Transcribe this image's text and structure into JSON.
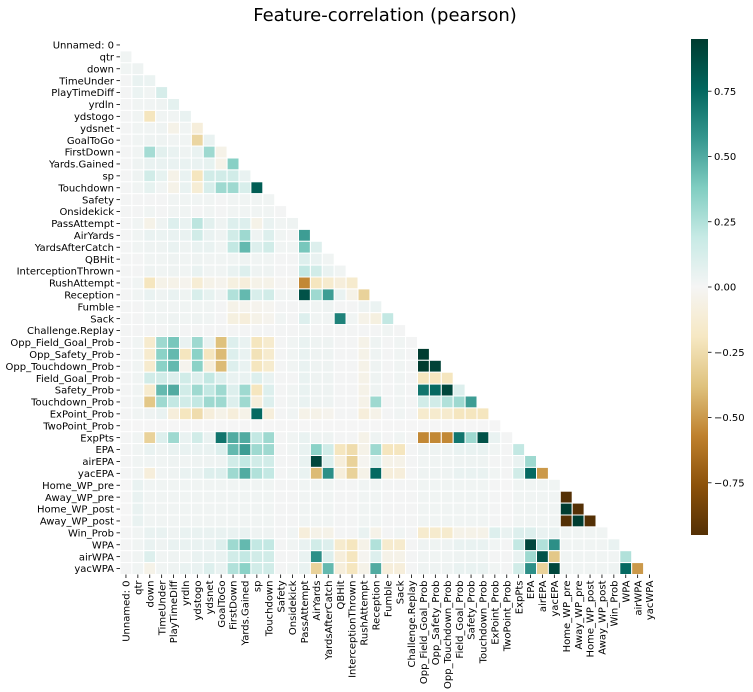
{
  "chart_data": {
    "type": "heatmap",
    "title": "Feature-correlation (pearson)",
    "mask": "upper-triangle",
    "labels": [
      "Unnamed: 0",
      "qtr",
      "down",
      "TimeUnder",
      "PlayTimeDiff",
      "yrdln",
      "ydstogo",
      "ydsnet",
      "GoalToGo",
      "FirstDown",
      "Yards.Gained",
      "sp",
      "Touchdown",
      "Safety",
      "Onsidekick",
      "PassAttempt",
      "AirYards",
      "YardsAfterCatch",
      "QBHit",
      "InterceptionThrown",
      "RushAttempt",
      "Reception",
      "Fumble",
      "Sack",
      "Challenge.Replay",
      "Opp_Field_Goal_Prob",
      "Opp_Safety_Prob",
      "Opp_Touchdown_Prob",
      "Field_Goal_Prob",
      "Safety_Prob",
      "Touchdown_Prob",
      "ExPoint_Prob",
      "TwoPoint_Prob",
      "ExpPts",
      "EPA",
      "airEPA",
      "yacEPA",
      "Home_WP_pre",
      "Away_WP_pre",
      "Home_WP_post",
      "Away_WP_post",
      "Win_Prob",
      "WPA",
      "airWPA",
      "yacWPA"
    ],
    "colorbar": {
      "ticks": [
        0.75,
        0.5,
        0.25,
        0.0,
        -0.25,
        -0.5,
        -0.75
      ],
      "tick_labels": [
        "0.75",
        "0.50",
        "0.25",
        "0.00",
        "−0.25",
        "−0.50",
        "−0.75"
      ],
      "range": [
        -0.95,
        0.95
      ],
      "colormap": "BrBG",
      "color_stops": [
        "#543005",
        "#8c510a",
        "#bf812d",
        "#dfc27d",
        "#f6e8c3",
        "#f5f5f5",
        "#c7eae5",
        "#80cdc1",
        "#35978f",
        "#01665e",
        "#003c30"
      ]
    },
    "values": [
      [
        0
      ],
      [
        0.02,
        0
      ],
      [
        0.02,
        0.03,
        0
      ],
      [
        0.01,
        0.05,
        0.04,
        0
      ],
      [
        0.01,
        0.04,
        0.02,
        0.13,
        0
      ],
      [
        0.01,
        0.02,
        0.02,
        0.03,
        0.07,
        0
      ],
      [
        0.01,
        0.02,
        -0.2,
        0.02,
        0.02,
        0.05,
        0
      ],
      [
        0.01,
        0.02,
        0.02,
        0.03,
        -0.05,
        0.02,
        -0.1,
        0
      ],
      [
        0.01,
        0.02,
        0.03,
        0.03,
        0.02,
        0.02,
        -0.28,
        0.05,
        0
      ],
      [
        0.01,
        0.02,
        0.28,
        0.08,
        0.05,
        0.03,
        0.05,
        0.3,
        -0.05,
        0
      ],
      [
        0.01,
        0.03,
        0.05,
        0.05,
        0.05,
        0.05,
        0.05,
        0.06,
        -0.05,
        0.36,
        0
      ],
      [
        0.01,
        0.03,
        0.15,
        0.06,
        -0.05,
        0.05,
        -0.2,
        0.15,
        0.15,
        0.15,
        0.05,
        0
      ],
      [
        0.01,
        0.02,
        0.06,
        0.02,
        -0.05,
        0.05,
        -0.12,
        0.12,
        0.3,
        0.3,
        0.12,
        0.8,
        0
      ],
      [
        0.01,
        0.01,
        0.01,
        0.01,
        0.02,
        0.02,
        0.02,
        0.02,
        0.01,
        0.02,
        0.02,
        0.02,
        0.02,
        0
      ],
      [
        0.01,
        0.01,
        0.02,
        0.01,
        0.02,
        0.02,
        0.01,
        0.02,
        0.01,
        0.02,
        0.02,
        0.02,
        0.02,
        0.01,
        0
      ],
      [
        0.01,
        0.02,
        -0.05,
        0.03,
        0.1,
        0.05,
        0.22,
        0.08,
        0.03,
        0.1,
        0.1,
        -0.05,
        0.05,
        0.02,
        0.03,
        0
      ],
      [
        0.01,
        0.02,
        0.05,
        0.04,
        0.05,
        0.05,
        0.15,
        0.05,
        0.03,
        0.15,
        0.3,
        0.03,
        0.1,
        0.02,
        0.01,
        0.55,
        0
      ],
      [
        0.01,
        0.02,
        0.03,
        0.03,
        0.05,
        0.03,
        0.05,
        0.05,
        0.02,
        0.2,
        0.45,
        0.1,
        0.15,
        0.02,
        0.02,
        0.4,
        0.1,
        0
      ],
      [
        0.01,
        0.01,
        0.02,
        0.02,
        0.03,
        0.02,
        0.03,
        0.02,
        0.02,
        0.02,
        0.03,
        0.02,
        0.02,
        0.01,
        0.01,
        0.1,
        0.05,
        0.02,
        0
      ],
      [
        0.01,
        0.01,
        0.03,
        0.02,
        0.03,
        0.02,
        0.05,
        0.02,
        0.02,
        0.05,
        0.1,
        0.03,
        0.03,
        0.01,
        0.01,
        0.2,
        0.15,
        0.05,
        0.02,
        0
      ],
      [
        0.01,
        0.02,
        -0.2,
        -0.05,
        -0.05,
        -0.03,
        -0.12,
        -0.05,
        -0.03,
        -0.08,
        -0.1,
        -0.05,
        -0.05,
        -0.01,
        -0.02,
        -0.55,
        -0.2,
        -0.15,
        -0.1,
        -0.15,
        0
      ],
      [
        0.01,
        0.02,
        0.05,
        0.03,
        0.05,
        0.03,
        0.12,
        0.06,
        0.03,
        0.25,
        0.45,
        0.12,
        0.15,
        0.02,
        0.02,
        0.85,
        0.3,
        0.55,
        0.05,
        -0.05,
        -0.3,
        0
      ],
      [
        0.01,
        0.01,
        0.02,
        0.02,
        0.02,
        0.02,
        0.02,
        0.02,
        0.01,
        -0.05,
        -0.03,
        -0.03,
        -0.02,
        0.01,
        0.01,
        0.02,
        0.02,
        0.03,
        0.01,
        0.01,
        0.03,
        0.04,
        0
      ],
      [
        0.01,
        0.01,
        0.02,
        0.02,
        0.03,
        0.02,
        0.03,
        0.02,
        0.01,
        -0.08,
        -0.1,
        -0.05,
        -0.03,
        0.02,
        0.01,
        0.1,
        0.02,
        0.02,
        0.65,
        0.02,
        -0.05,
        -0.08,
        0.2,
        0
      ],
      [
        0.01,
        0.01,
        0.01,
        0.01,
        0.02,
        0.01,
        0.01,
        0.01,
        0.01,
        0.01,
        0.01,
        0.01,
        0.01,
        0.01,
        0.01,
        0.02,
        0.01,
        0.01,
        0.01,
        0.01,
        0.01,
        0.01,
        0.02,
        0.01,
        0
      ],
      [
        0.01,
        0.02,
        -0.15,
        0.3,
        0.4,
        0.05,
        0.3,
        0.05,
        -0.38,
        0.1,
        0.05,
        -0.2,
        -0.15,
        0.01,
        0.02,
        0.05,
        0.03,
        0.03,
        0.01,
        0.01,
        -0.05,
        0.03,
        0.01,
        0.02,
        0.01,
        0
      ],
      [
        0.01,
        0.02,
        -0.15,
        0.35,
        0.45,
        -0.2,
        0.35,
        -0.2,
        -0.4,
        0.1,
        0.05,
        -0.22,
        -0.15,
        0.01,
        0.02,
        0.05,
        0.03,
        0.03,
        0.01,
        0.01,
        -0.05,
        0.03,
        0.01,
        0.02,
        0.01,
        0.95,
        0
      ],
      [
        0.01,
        0.02,
        -0.15,
        0.35,
        0.45,
        -0.03,
        0.35,
        -0.1,
        -0.4,
        0.1,
        0.05,
        -0.2,
        -0.15,
        0.01,
        0.02,
        0.05,
        0.03,
        0.03,
        0.01,
        0.01,
        -0.05,
        0.03,
        0.01,
        0.02,
        0.01,
        0.95,
        0.92,
        0
      ],
      [
        0.01,
        0.02,
        0.15,
        0.15,
        0.1,
        0.15,
        0.1,
        0.2,
        0.1,
        0.05,
        0.05,
        0.1,
        0.05,
        0.01,
        0.01,
        0.05,
        0.03,
        0.03,
        0.01,
        0.01,
        -0.05,
        0.03,
        0.01,
        0.02,
        0.01,
        -0.2,
        -0.2,
        -0.2,
        0
      ],
      [
        0.01,
        0.02,
        -0.15,
        0.45,
        0.5,
        0.15,
        0.3,
        0.2,
        0.3,
        0.1,
        0.3,
        -0.2,
        0.1,
        0.01,
        0.02,
        0.05,
        0.03,
        0.03,
        0.01,
        0.01,
        -0.05,
        0.03,
        0.01,
        0.02,
        0.01,
        0.7,
        0.75,
        0.9,
        0.1,
        0
      ],
      [
        0.01,
        0.02,
        -0.35,
        0.3,
        0.2,
        0.15,
        0.2,
        0.3,
        0.3,
        0.1,
        0.3,
        -0.1,
        0.1,
        0.01,
        0.02,
        0.05,
        0.03,
        0.03,
        0.01,
        0.01,
        -0.05,
        0.3,
        0.01,
        0.02,
        0.01,
        0.15,
        0.15,
        0.25,
        0.3,
        0.55,
        0
      ],
      [
        0.01,
        0.02,
        0.03,
        0.05,
        -0.1,
        -0.2,
        -0.25,
        -0.1,
        -0.05,
        -0.1,
        -0.05,
        0.75,
        -0.1,
        0.01,
        0.02,
        -0.05,
        -0.05,
        -0.03,
        0.01,
        0.01,
        -0.1,
        -0.05,
        0.01,
        0.02,
        0.01,
        -0.15,
        -0.15,
        -0.15,
        -0.2,
        -0.2,
        -0.2,
        0
      ],
      [
        0,
        0,
        0,
        0,
        0,
        0,
        0,
        0,
        0,
        0,
        0,
        0,
        0,
        0,
        0,
        0,
        0,
        0,
        0,
        0,
        0,
        0,
        0,
        0,
        0,
        0,
        0,
        0,
        0,
        0,
        0,
        0,
        0
      ],
      [
        0.01,
        0.02,
        -0.3,
        0.1,
        0.3,
        0.05,
        0.15,
        0.05,
        0.7,
        0.5,
        0.5,
        0.2,
        0.3,
        0.01,
        0.02,
        0.05,
        0.03,
        0.03,
        0.01,
        0.01,
        -0.05,
        0.03,
        0.01,
        0.02,
        0.01,
        -0.55,
        -0.55,
        -0.55,
        0.7,
        0.3,
        0.85,
        0.05,
        0.01,
        0
      ],
      [
        0.01,
        0.02,
        0.05,
        0.03,
        0.05,
        0.05,
        0.05,
        0.05,
        0.1,
        0.45,
        0.55,
        0.3,
        0.3,
        0.01,
        0.02,
        0.05,
        0.35,
        0.15,
        -0.2,
        -0.25,
        -0.05,
        0.3,
        -0.2,
        -0.2,
        0.01,
        0.03,
        0.03,
        0.03,
        0.05,
        0.05,
        0.05,
        0.02,
        0.01,
        0.2,
        0
      ],
      [
        0.01,
        0.02,
        0.02,
        0.02,
        0.03,
        0.02,
        0.03,
        0.03,
        0.03,
        0.15,
        0.2,
        0.15,
        0.15,
        0.01,
        0.01,
        0.05,
        0.9,
        0.1,
        -0.1,
        -0.3,
        -0.02,
        0.1,
        -0.05,
        -0.05,
        0.01,
        0.02,
        0.02,
        0.02,
        0.03,
        0.03,
        0.03,
        0.01,
        0.01,
        0.05,
        0.3,
        0
      ],
      [
        0.01,
        0.02,
        -0.1,
        0.02,
        0.03,
        0.05,
        0.05,
        0.1,
        0.1,
        0.3,
        0.5,
        0.25,
        0.2,
        0.01,
        0.02,
        0.05,
        -0.4,
        0.6,
        -0.1,
        -0.3,
        -0.05,
        0.75,
        -0.1,
        -0.1,
        0.01,
        0.03,
        0.03,
        0.03,
        0.05,
        0.05,
        0.05,
        0.02,
        0.01,
        0.15,
        0.75,
        -0.5,
        0
      ],
      [
        0,
        0.05,
        0.02,
        0.02,
        0.02,
        0.02,
        0.02,
        0.02,
        0.02,
        0.02,
        0.02,
        0.02,
        0.02,
        0.01,
        0.01,
        0.02,
        0.02,
        0.02,
        0.01,
        0.01,
        0.02,
        0.02,
        0.01,
        0.01,
        0.01,
        0.02,
        0.02,
        0.02,
        0.02,
        0.02,
        0.02,
        0.01,
        0,
        0.02,
        0.02,
        0.02,
        0.02,
        0
      ],
      [
        0,
        0.05,
        0.02,
        0.02,
        0.02,
        0.02,
        0.02,
        0.02,
        0.02,
        0.02,
        0.02,
        0.02,
        0.02,
        0.01,
        0.01,
        0.02,
        0.02,
        0.02,
        0.01,
        0.01,
        0.02,
        0.02,
        0.01,
        0.01,
        0.01,
        0.02,
        0.02,
        0.02,
        0.02,
        0.02,
        0.02,
        0.01,
        0,
        0.02,
        0.02,
        0.02,
        0.02,
        -1,
        0
      ],
      [
        0,
        0.05,
        0.02,
        0.02,
        0.02,
        0.02,
        0.02,
        0.02,
        0.02,
        0.02,
        0.02,
        0.02,
        0.02,
        0.01,
        0.01,
        0.02,
        0.02,
        0.02,
        0.01,
        0.01,
        0.02,
        0.02,
        0.01,
        0.01,
        0.01,
        0.02,
        0.02,
        0.02,
        0.02,
        0.02,
        0.02,
        0.01,
        0,
        0.02,
        0.02,
        0.02,
        0.02,
        0.95,
        -0.95,
        0
      ],
      [
        0,
        0.05,
        0.02,
        0.02,
        0.02,
        0.02,
        0.02,
        0.02,
        0.02,
        0.02,
        0.02,
        0.02,
        0.02,
        0.01,
        0.01,
        0.02,
        0.02,
        0.02,
        0.01,
        0.01,
        0.02,
        0.02,
        0.01,
        0.01,
        0.01,
        0.02,
        0.02,
        0.02,
        0.02,
        0.02,
        0.02,
        0.01,
        0,
        0.02,
        0.02,
        0.02,
        0.02,
        -0.95,
        0.95,
        -1,
        0
      ],
      [
        0.01,
        0.02,
        0.05,
        0.05,
        0.03,
        0.05,
        0.05,
        0.05,
        0.05,
        0.05,
        0.05,
        0.03,
        0.03,
        0.01,
        0.02,
        -0.1,
        -0.05,
        -0.05,
        0.01,
        0.01,
        0.05,
        -0.05,
        0.01,
        0.02,
        0.01,
        -0.15,
        -0.15,
        -0.15,
        -0.05,
        -0.05,
        -0.05,
        0.1,
        0.05,
        0.1,
        0.1,
        0.05,
        0.05,
        0.02,
        0.02,
        0.02,
        0.02,
        0
      ],
      [
        0.01,
        0.02,
        0.05,
        0.03,
        0.05,
        0.05,
        0.05,
        0.05,
        0.1,
        0.3,
        0.45,
        0.2,
        0.2,
        0.01,
        0.02,
        0.05,
        0.15,
        0.1,
        -0.15,
        -0.2,
        -0.05,
        0.25,
        -0.15,
        -0.15,
        0.01,
        0.03,
        0.03,
        0.03,
        0.05,
        0.05,
        0.05,
        0.02,
        0.01,
        0.2,
        0.9,
        0.25,
        0.6,
        0.02,
        0.02,
        0.02,
        0.02,
        0.05,
        0
      ],
      [
        0.01,
        0.02,
        0.1,
        0.02,
        0.03,
        0.02,
        0.05,
        0.05,
        0.05,
        0.15,
        0.2,
        0.15,
        0.15,
        0.01,
        0.01,
        0.05,
        0.6,
        0.1,
        -0.1,
        -0.2,
        -0.02,
        0.1,
        -0.05,
        -0.05,
        0.01,
        0.02,
        0.02,
        0.02,
        0.03,
        0.03,
        0.03,
        0.01,
        0.01,
        0.05,
        0.3,
        0.85,
        -0.35,
        0.02,
        0.02,
        0.02,
        0.02,
        0.02,
        0.25,
        0
      ],
      [
        0.01,
        0.02,
        -0.05,
        0.02,
        0.03,
        0.05,
        0.05,
        0.1,
        0.05,
        0.25,
        0.35,
        0.15,
        0.15,
        0.01,
        0.02,
        0.05,
        -0.3,
        0.45,
        -0.1,
        -0.2,
        -0.05,
        0.5,
        -0.1,
        -0.1,
        0.01,
        0.03,
        0.03,
        0.03,
        0.05,
        0.05,
        0.05,
        0.02,
        0.01,
        0.15,
        0.6,
        -0.3,
        0.9,
        0.02,
        0.02,
        0.02,
        0.02,
        0.03,
        0.75,
        -0.5,
        0
      ]
    ]
  }
}
